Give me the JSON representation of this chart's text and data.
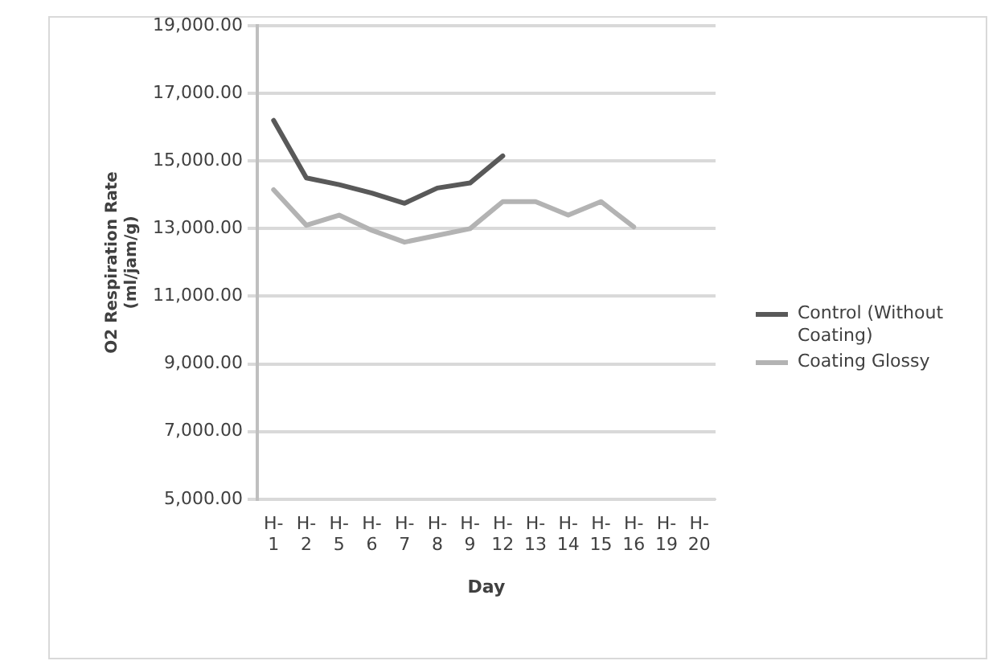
{
  "chart_data": {
    "type": "line",
    "xlabel": "Day",
    "ylabel": "O2 Respiration Rate (ml/jam/g)",
    "categories": [
      "H- 1",
      "H- 2",
      "H- 5",
      "H- 6",
      "H- 7",
      "H- 8",
      "H- 9",
      "H- 12",
      "H- 13",
      "H- 14",
      "H- 15",
      "H- 16",
      "H- 19",
      "H- 20"
    ],
    "series": [
      {
        "name": "Control (Without Coating)",
        "color": "#595959",
        "values": [
          16200,
          14500,
          14300,
          14050,
          13750,
          14200,
          14350,
          15150,
          null,
          null,
          null,
          null,
          null,
          null
        ]
      },
      {
        "name": "Coating Glossy",
        "color": "#b3b3b3",
        "values": [
          14150,
          13100,
          13400,
          12950,
          12600,
          12800,
          13000,
          13800,
          13800,
          13400,
          13800,
          13050,
          null,
          null
        ]
      }
    ],
    "ylim": [
      5000,
      19000
    ],
    "yticks": [
      {
        "value": 5000,
        "label": "5,000.00"
      },
      {
        "value": 7000,
        "label": "7,000.00"
      },
      {
        "value": 9000,
        "label": "9,000.00"
      },
      {
        "value": 11000,
        "label": "11,000.00"
      },
      {
        "value": 13000,
        "label": "13,000.00"
      },
      {
        "value": 15000,
        "label": "15,000.00"
      },
      {
        "value": 17000,
        "label": "17,000.00"
      },
      {
        "value": 19000,
        "label": "19,000.00"
      }
    ],
    "grid": "y",
    "legend": "right",
    "marker": "none",
    "line_style": "solid"
  }
}
